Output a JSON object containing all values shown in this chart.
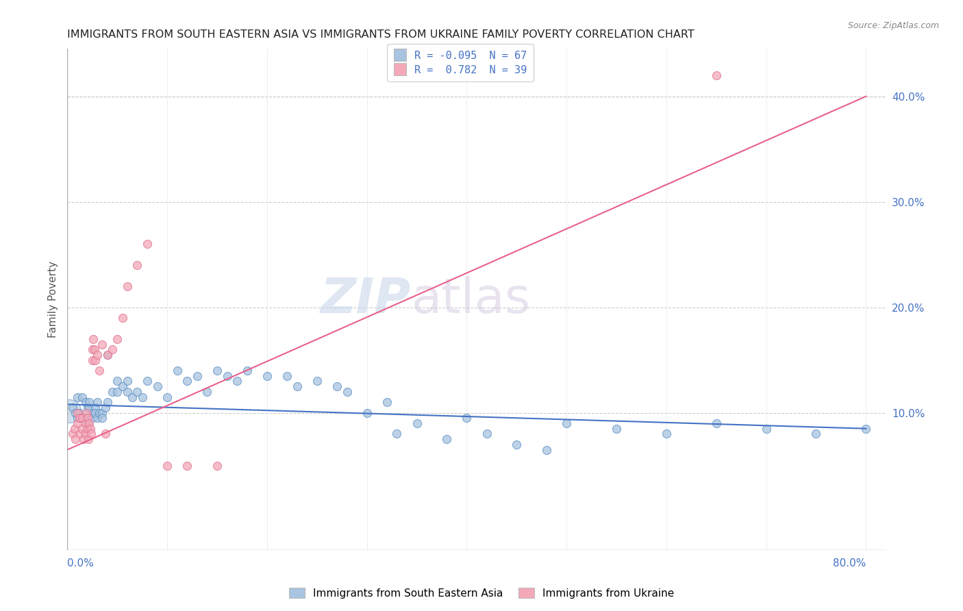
{
  "title": "IMMIGRANTS FROM SOUTH EASTERN ASIA VS IMMIGRANTS FROM UKRAINE FAMILY POVERTY CORRELATION CHART",
  "source": "Source: ZipAtlas.com",
  "ylabel": "Family Poverty",
  "right_yticks": [
    0.1,
    0.2,
    0.3,
    0.4
  ],
  "right_yticklabels": [
    "10.0%",
    "20.0%",
    "30.0%",
    "40.0%"
  ],
  "xlim": [
    0.0,
    0.82
  ],
  "ylim": [
    -0.03,
    0.445
  ],
  "watermark_zip": "ZIP",
  "watermark_atlas": "atlas",
  "legend_text1": "R = -0.095  N = 67",
  "legend_text2": "R =  0.782  N = 39",
  "color_asia": "#a8c4e0",
  "color_ukraine": "#f4a8b8",
  "edge_color_asia": "#5b8fc4",
  "edge_color_ukraine": "#e07090",
  "trendline_color_asia": "#4472c4",
  "trendline_color_ukraine": "#e8608a",
  "background_color": "#ffffff",
  "asia_x": [
    0.005,
    0.008,
    0.01,
    0.01,
    0.012,
    0.015,
    0.015,
    0.018,
    0.018,
    0.02,
    0.02,
    0.022,
    0.022,
    0.025,
    0.025,
    0.028,
    0.028,
    0.03,
    0.03,
    0.032,
    0.035,
    0.035,
    0.038,
    0.04,
    0.04,
    0.045,
    0.05,
    0.05,
    0.055,
    0.06,
    0.06,
    0.065,
    0.07,
    0.075,
    0.08,
    0.09,
    0.1,
    0.11,
    0.12,
    0.13,
    0.14,
    0.15,
    0.16,
    0.17,
    0.18,
    0.2,
    0.22,
    0.23,
    0.25,
    0.27,
    0.28,
    0.3,
    0.32,
    0.33,
    0.35,
    0.38,
    0.4,
    0.42,
    0.45,
    0.48,
    0.5,
    0.55,
    0.6,
    0.65,
    0.7,
    0.75,
    0.8
  ],
  "asia_y": [
    0.105,
    0.1,
    0.095,
    0.115,
    0.1,
    0.115,
    0.095,
    0.11,
    0.095,
    0.105,
    0.09,
    0.105,
    0.11,
    0.1,
    0.095,
    0.105,
    0.1,
    0.095,
    0.11,
    0.1,
    0.1,
    0.095,
    0.105,
    0.155,
    0.11,
    0.12,
    0.13,
    0.12,
    0.125,
    0.13,
    0.12,
    0.115,
    0.12,
    0.115,
    0.13,
    0.125,
    0.115,
    0.14,
    0.13,
    0.135,
    0.12,
    0.14,
    0.135,
    0.13,
    0.14,
    0.135,
    0.135,
    0.125,
    0.13,
    0.125,
    0.12,
    0.1,
    0.11,
    0.08,
    0.09,
    0.075,
    0.095,
    0.08,
    0.07,
    0.065,
    0.09,
    0.085,
    0.08,
    0.09,
    0.085,
    0.08,
    0.085
  ],
  "ukraine_x": [
    0.005,
    0.007,
    0.008,
    0.01,
    0.01,
    0.012,
    0.013,
    0.015,
    0.015,
    0.016,
    0.018,
    0.018,
    0.019,
    0.02,
    0.02,
    0.021,
    0.022,
    0.023,
    0.024,
    0.025,
    0.025,
    0.026,
    0.027,
    0.028,
    0.03,
    0.032,
    0.035,
    0.038,
    0.04,
    0.045,
    0.05,
    0.055,
    0.06,
    0.07,
    0.08,
    0.1,
    0.12,
    0.15,
    0.65
  ],
  "ukraine_y": [
    0.08,
    0.085,
    0.075,
    0.1,
    0.09,
    0.095,
    0.08,
    0.085,
    0.095,
    0.075,
    0.09,
    0.08,
    0.1,
    0.085,
    0.095,
    0.075,
    0.09,
    0.085,
    0.08,
    0.15,
    0.16,
    0.17,
    0.16,
    0.15,
    0.155,
    0.14,
    0.165,
    0.08,
    0.155,
    0.16,
    0.17,
    0.19,
    0.22,
    0.24,
    0.26,
    0.05,
    0.05,
    0.05,
    0.42
  ],
  "asia_trendline": [
    0.0,
    0.8,
    0.108,
    0.085
  ],
  "ukraine_trendline": [
    0.0,
    0.8,
    0.065,
    0.4
  ]
}
